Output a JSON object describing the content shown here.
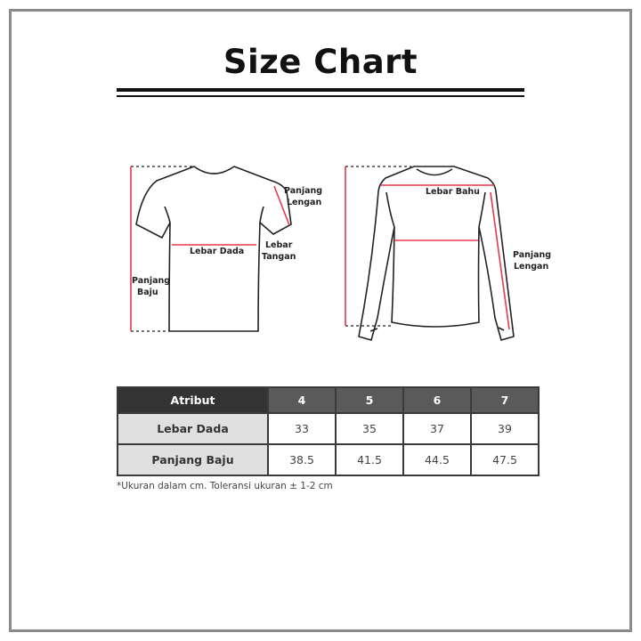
{
  "title": "Size Chart",
  "diagrams": {
    "tshirt": {
      "labels": {
        "panjang_lengan": [
          "Panjang",
          "Lengan"
        ],
        "lebar_dada": "Lebar Dada",
        "lebar_tangan": [
          "Lebar",
          "Tangan"
        ],
        "panjang_baju": [
          "Panjang",
          "Baju"
        ]
      }
    },
    "longsleeve": {
      "labels": {
        "lebar_bahu": "Lebar Bahu",
        "panjang_lengan": [
          "Panjang",
          "Lengan"
        ]
      }
    },
    "measure_color": "#e8394a"
  },
  "table": {
    "headers": [
      "Atribut",
      "4",
      "5",
      "6",
      "7"
    ],
    "rows": [
      {
        "label": "Lebar Dada",
        "values": [
          "33",
          "35",
          "37",
          "39"
        ]
      },
      {
        "label": "Panjang Baju",
        "values": [
          "38.5",
          "41.5",
          "44.5",
          "47.5"
        ]
      }
    ]
  },
  "note": "*Ukuran dalam cm. Toleransi ukuran ± 1-2 cm"
}
